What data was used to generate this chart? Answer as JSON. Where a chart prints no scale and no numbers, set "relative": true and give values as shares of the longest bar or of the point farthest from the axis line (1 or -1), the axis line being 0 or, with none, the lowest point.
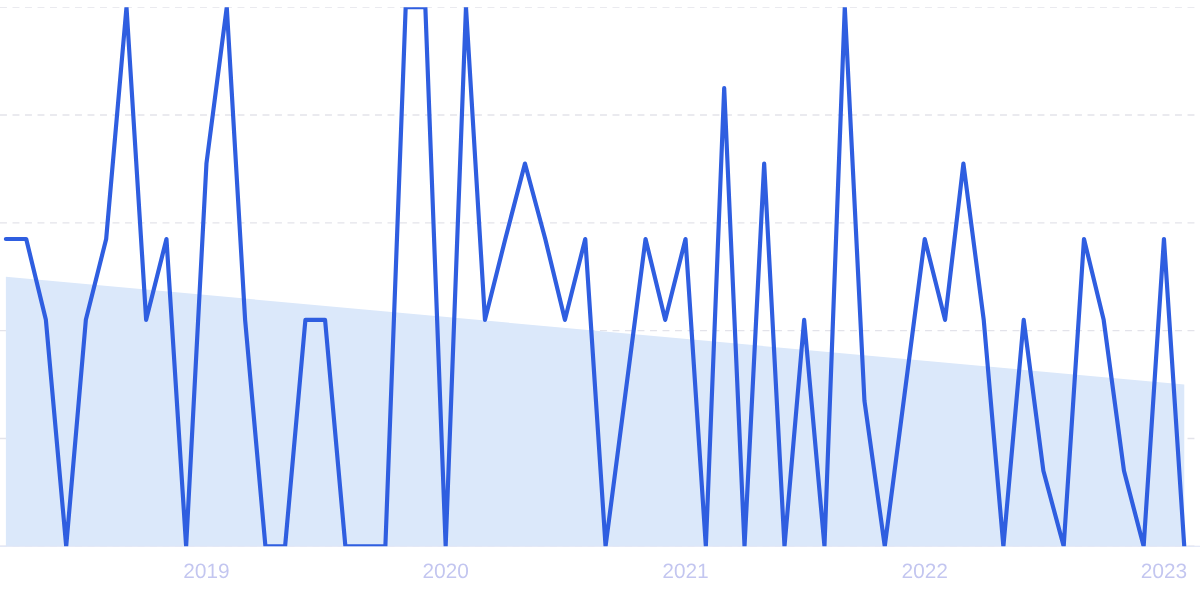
{
  "chart_data": {
    "type": "line",
    "relative": true,
    "grid": "y",
    "line_style": "solid",
    "marker": "none",
    "xlim": [
      "2018-02-20",
      "2023-02-25"
    ],
    "xticks": [
      "2019",
      "2020",
      "2021",
      "2022",
      "2023"
    ],
    "series": [
      {
        "type": "area",
        "color": "#dbe8fa",
        "x": [
          "2018-03",
          "2023-02"
        ],
        "values": [
          0.5,
          0.3
        ]
      },
      {
        "color": "#2f5ee0",
        "x": [
          "2018-03",
          "2018-04",
          "2018-05",
          "2018-06",
          "2018-07",
          "2018-08",
          "2018-09",
          "2018-10",
          "2018-11",
          "2018-12",
          "2019-01",
          "2019-02",
          "2019-03",
          "2019-04",
          "2019-05",
          "2019-06",
          "2019-07",
          "2019-08",
          "2019-09",
          "2019-10",
          "2019-11",
          "2019-12",
          "2020-01",
          "2020-02",
          "2020-03",
          "2020-04",
          "2020-05",
          "2020-06",
          "2020-07",
          "2020-08",
          "2020-09",
          "2020-10",
          "2020-11",
          "2020-12",
          "2021-01",
          "2021-02",
          "2021-03",
          "2021-04",
          "2021-05",
          "2021-06",
          "2021-07",
          "2021-08",
          "2021-09",
          "2021-10",
          "2021-11",
          "2021-12",
          "2022-01",
          "2022-02",
          "2022-03",
          "2022-04",
          "2022-05",
          "2022-06",
          "2022-07",
          "2022-08",
          "2022-09",
          "2022-10",
          "2022-11",
          "2022-12",
          "2023-01",
          "2023-02"
        ],
        "values": [
          0.57,
          0.57,
          0.42,
          0,
          0.42,
          0.57,
          1,
          0.42,
          0.57,
          0,
          0.71,
          1,
          0.42,
          0,
          0,
          0.42,
          0.42,
          0,
          0,
          0,
          1,
          1,
          0,
          1,
          0.42,
          0.57,
          0.71,
          0.57,
          0.42,
          0.57,
          0,
          0.28,
          0.57,
          0.42,
          0.57,
          0,
          0.85,
          0,
          0.71,
          0,
          0.42,
          0,
          1,
          0.27,
          0,
          0.28,
          0.57,
          0.42,
          0.71,
          0.42,
          0,
          0.42,
          0.14,
          0,
          0.57,
          0.42,
          0.14,
          0,
          0.57,
          0
        ]
      }
    ]
  }
}
